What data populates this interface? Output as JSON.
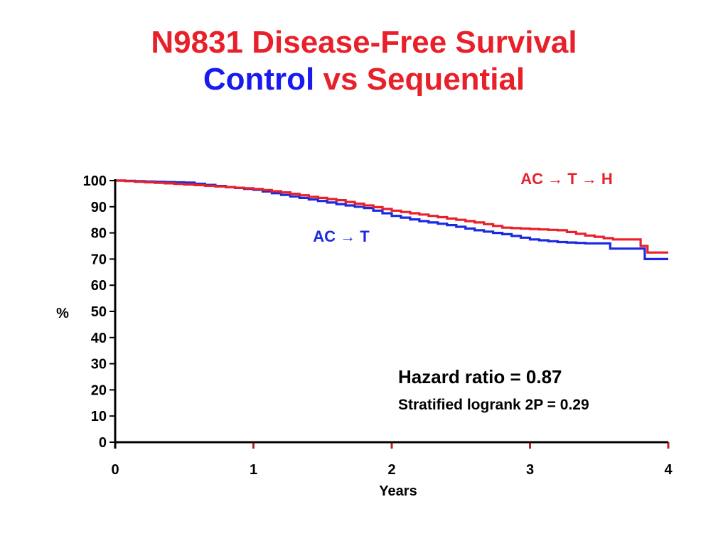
{
  "colors": {
    "title_red": "#e8202a",
    "title_blue": "#1a1aee",
    "series_red": "#e8202a",
    "series_blue": "#1a2ae0",
    "axis": "#000000"
  },
  "header": {
    "title_line1": "N9831 Disease-Free Survival",
    "title_word_control": "Control",
    "title_word_rest": " vs Sequential"
  },
  "chart_data": {
    "type": "line",
    "xlabel": "Years",
    "ylabel": "%",
    "xlim": [
      0,
      4
    ],
    "ylim": [
      0,
      100
    ],
    "x_ticks": [
      "0",
      "1",
      "2",
      "3",
      "4"
    ],
    "y_ticks": [
      "0",
      "10",
      "20",
      "30",
      "40",
      "50",
      "60",
      "70",
      "80",
      "90",
      "100"
    ],
    "series": [
      {
        "name": "AC → T",
        "color": "#1a2ae0",
        "points": [
          [
            0,
            100
          ],
          [
            0.5,
            99.2
          ],
          [
            0.8,
            97.5
          ],
          [
            1.0,
            96.5
          ],
          [
            1.2,
            94.5
          ],
          [
            1.4,
            92.8
          ],
          [
            1.6,
            91.0
          ],
          [
            1.8,
            89.5
          ],
          [
            2.0,
            86.5
          ],
          [
            2.2,
            84.5
          ],
          [
            2.4,
            83.0
          ],
          [
            2.6,
            81.0
          ],
          [
            2.8,
            79.5
          ],
          [
            3.0,
            77.5
          ],
          [
            3.2,
            76.5
          ],
          [
            3.4,
            76.0
          ],
          [
            3.55,
            76.0
          ],
          [
            3.58,
            74.0
          ],
          [
            3.8,
            74.0
          ],
          [
            3.83,
            70.0
          ],
          [
            4.0,
            70.0
          ]
        ]
      },
      {
        "name": "AC → T → H",
        "color": "#e8202a",
        "points": [
          [
            0,
            100
          ],
          [
            0.5,
            98.5
          ],
          [
            0.8,
            97.5
          ],
          [
            1.0,
            96.8
          ],
          [
            1.2,
            95.5
          ],
          [
            1.4,
            93.8
          ],
          [
            1.6,
            92.5
          ],
          [
            1.8,
            90.5
          ],
          [
            2.0,
            88.5
          ],
          [
            2.2,
            87.0
          ],
          [
            2.4,
            85.5
          ],
          [
            2.6,
            84.0
          ],
          [
            2.8,
            82.0
          ],
          [
            3.0,
            81.5
          ],
          [
            3.2,
            81.0
          ],
          [
            3.4,
            79.0
          ],
          [
            3.6,
            77.5
          ],
          [
            3.78,
            77.5
          ],
          [
            3.8,
            75.0
          ],
          [
            3.85,
            72.5
          ],
          [
            4.0,
            72.5
          ]
        ]
      }
    ],
    "annotations": {
      "hazard_ratio": "Hazard ratio = 0.87",
      "logrank": "Stratified logrank 2P = 0.29"
    }
  }
}
